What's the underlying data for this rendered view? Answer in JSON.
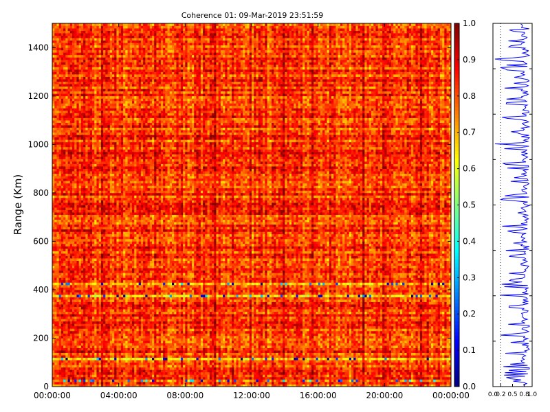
{
  "figure": {
    "title": "Coherence 01: 09-Mar-2019 23:51:59"
  },
  "chart_data": [
    {
      "type": "heatmap",
      "title": "Coherence 01: 09-Mar-2019 23:51:59",
      "xlabel": "",
      "ylabel": "Range (Km)",
      "x_ticks": [
        "00:00:00",
        "04:00:00",
        "08:00:00",
        "12:00:00",
        "16:00:00",
        "20:00:00",
        "00:00:00"
      ],
      "y_ticks": [
        0,
        200,
        400,
        600,
        800,
        1000,
        1200,
        1400
      ],
      "ylim": [
        0,
        1500
      ],
      "x_range": [
        "09-Mar-2019 00:00:00",
        "10-Mar-2019 00:00:00"
      ],
      "colormap": "jet",
      "colorbar": {
        "min": 0.0,
        "max": 1.0,
        "ticks": [
          "0.0",
          "0.1",
          "0.2",
          "0.3",
          "0.4",
          "0.5",
          "0.6",
          "0.7",
          "0.8",
          "0.9",
          "1.0"
        ]
      },
      "value_range": [
        0.0,
        1.0
      ],
      "typical_value": 0.82,
      "low_coherence_range_bands_km": [
        25,
        80,
        115,
        180,
        230,
        260,
        290,
        330,
        375,
        425,
        440,
        470,
        540,
        590,
        640,
        720,
        770,
        790,
        850,
        920,
        950,
        1000,
        1050,
        1110,
        1170,
        1190,
        1230,
        1250,
        1310,
        1330,
        1350,
        1380,
        1430,
        1470
      ],
      "high_coherence_range_bands_km": [
        300,
        320,
        330,
        450,
        460,
        470,
        480,
        500,
        600,
        640,
        690,
        700,
        720,
        890,
        1000,
        1020,
        1100,
        1150,
        1160,
        1270,
        1280,
        1410,
        1430,
        1450,
        1460,
        1480
      ],
      "grid": false
    },
    {
      "type": "line",
      "title": "",
      "xlabel": "",
      "ylabel": "",
      "xlim": [
        0.0,
        1.0
      ],
      "x_ticks": [
        "0.0",
        "0.2",
        "0.5",
        "0.8",
        "1.0"
      ],
      "ylim": [
        0,
        1500
      ],
      "y_tick_count": 8,
      "reference_line_x": 0.2,
      "series": [
        {
          "color": "#0000ff",
          "mean_value": 0.82,
          "min_value": 0.05,
          "max_value": 0.97
        }
      ]
    }
  ],
  "colors": {
    "line": "#0000ff",
    "axis": "#000000",
    "background": "#ffffff"
  }
}
